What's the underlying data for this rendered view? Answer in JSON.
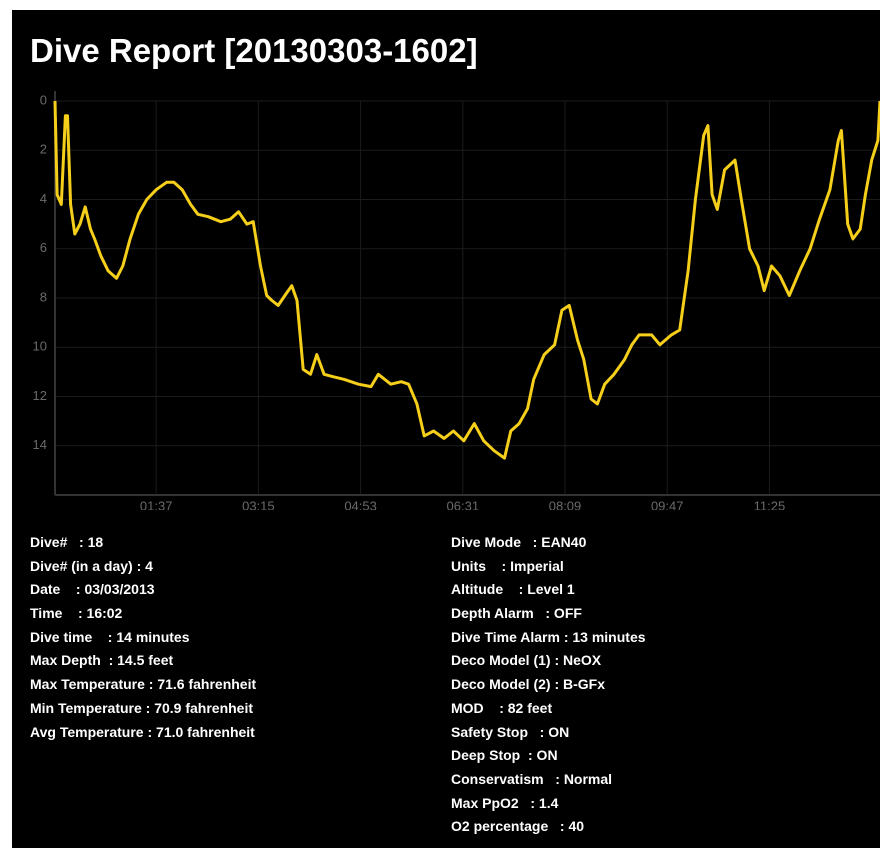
{
  "header": {
    "title": "Dive Report [20130303-1602]"
  },
  "chart_data": {
    "type": "line",
    "color": "#f5cf1a",
    "y_reversed": true,
    "grid": true,
    "xlim": [
      0,
      791
    ],
    "ylim": [
      0,
      16
    ],
    "xticks": [
      {
        "value": 97,
        "label": "01:37"
      },
      {
        "value": 195,
        "label": "03:15"
      },
      {
        "value": 293,
        "label": "04:53"
      },
      {
        "value": 391,
        "label": "06:31"
      },
      {
        "value": 489,
        "label": "08:09"
      },
      {
        "value": 587,
        "label": "09:47"
      },
      {
        "value": 685,
        "label": "11:25"
      }
    ],
    "yticks": [
      0,
      2,
      4,
      6,
      8,
      10,
      12,
      14
    ],
    "x": [
      0,
      2,
      6,
      10,
      12,
      15,
      19,
      24,
      29,
      34,
      38,
      44,
      51,
      59,
      65,
      72,
      80,
      88,
      97,
      107,
      114,
      122,
      130,
      137,
      147,
      159,
      168,
      176,
      184,
      190,
      197,
      203,
      208,
      214,
      222,
      227,
      232,
      238,
      245,
      251,
      258,
      267,
      277,
      291,
      303,
      310,
      322,
      332,
      339,
      347,
      354,
      363,
      373,
      382,
      392,
      402,
      411,
      421,
      431,
      437,
      445,
      453,
      459,
      469,
      479,
      486,
      493,
      501,
      507,
      514,
      520,
      527,
      536,
      546,
      553,
      560,
      572,
      580,
      591,
      599,
      607,
      614,
      622,
      626,
      630,
      635,
      642,
      652,
      658,
      666,
      674,
      680,
      687,
      695,
      704,
      714,
      724,
      733,
      743,
      751,
      754,
      760,
      765,
      772,
      777,
      783,
      789,
      791
    ],
    "values": [
      0,
      3.8,
      4.2,
      0.6,
      0.6,
      4.2,
      5.4,
      5.0,
      4.3,
      5.2,
      5.6,
      6.3,
      6.9,
      7.2,
      6.7,
      5.6,
      4.6,
      4.0,
      3.6,
      3.3,
      3.3,
      3.6,
      4.2,
      4.6,
      4.7,
      4.9,
      4.8,
      4.5,
      5.0,
      4.9,
      6.7,
      7.9,
      8.1,
      8.3,
      7.8,
      7.5,
      8.1,
      10.9,
      11.1,
      10.3,
      11.1,
      11.2,
      11.3,
      11.5,
      11.6,
      11.1,
      11.5,
      11.4,
      11.5,
      12.3,
      13.6,
      13.4,
      13.7,
      13.4,
      13.8,
      13.1,
      13.8,
      14.2,
      14.5,
      13.4,
      13.1,
      12.5,
      11.3,
      10.3,
      9.9,
      8.5,
      8.3,
      9.7,
      10.5,
      12.1,
      12.3,
      11.5,
      11.1,
      10.5,
      9.9,
      9.5,
      9.5,
      9.9,
      9.5,
      9.3,
      6.9,
      4.0,
      1.4,
      1.0,
      3.8,
      4.4,
      2.8,
      2.4,
      4.0,
      6.0,
      6.7,
      7.7,
      6.7,
      7.1,
      7.9,
      6.9,
      6.0,
      4.8,
      3.6,
      1.6,
      1.2,
      5.0,
      5.6,
      5.2,
      3.8,
      2.4,
      1.6,
      0
    ]
  },
  "info": {
    "left": [
      "Dive#   : 18",
      "Dive# (in a day) : 4",
      "Date    : 03/03/2013",
      "Time    : 16:02",
      "Dive time    : 14 minutes",
      "Max Depth  : 14.5 feet",
      "Max Temperature : 71.6 fahrenheit",
      "Min Temperature : 70.9 fahrenheit",
      "Avg Temperature : 71.0 fahrenheit"
    ],
    "right": [
      "Dive Mode   : EAN40",
      "Units    : Imperial",
      "Altitude    : Level 1",
      "Depth Alarm   : OFF",
      "Dive Time Alarm : 13 minutes",
      "Deco Model (1) : NeOX",
      "Deco Model (2) : B-GFx",
      "MOD    : 82 feet",
      "Safety Stop   : ON",
      "Deep Stop  : ON",
      "Conservatism   : Normal",
      "Max PpO2   : 1.4",
      "O2 percentage   : 40"
    ]
  }
}
